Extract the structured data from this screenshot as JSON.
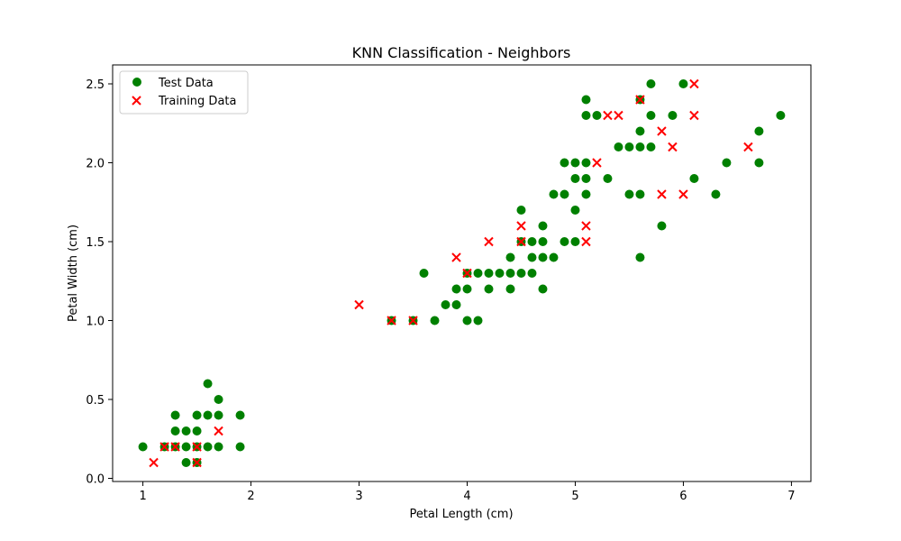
{
  "chart_data": {
    "type": "scatter",
    "title": "KNN Classification - Neighbors",
    "xlabel": "Petal Length (cm)",
    "ylabel": "Petal Width (cm)",
    "xlim": [
      0.72,
      7.18
    ],
    "ylim": [
      -0.02,
      2.62
    ],
    "xticks": [
      1,
      2,
      3,
      4,
      5,
      6,
      7
    ],
    "yticks": [
      0.0,
      0.5,
      1.0,
      1.5,
      2.0,
      2.5
    ],
    "xtick_labels": [
      "1",
      "2",
      "3",
      "4",
      "5",
      "6",
      "7"
    ],
    "ytick_labels": [
      "0.0",
      "0.5",
      "1.0",
      "1.5",
      "2.0",
      "2.5"
    ],
    "grid": false,
    "legend_position": "top-left",
    "series": [
      {
        "name": "Test Data",
        "marker": "circle",
        "color": "#008000",
        "points": [
          [
            1.0,
            0.2
          ],
          [
            1.2,
            0.2
          ],
          [
            1.3,
            0.2
          ],
          [
            1.3,
            0.3
          ],
          [
            1.3,
            0.4
          ],
          [
            1.4,
            0.1
          ],
          [
            1.4,
            0.2
          ],
          [
            1.4,
            0.3
          ],
          [
            1.5,
            0.1
          ],
          [
            1.5,
            0.2
          ],
          [
            1.5,
            0.3
          ],
          [
            1.5,
            0.4
          ],
          [
            1.6,
            0.2
          ],
          [
            1.6,
            0.4
          ],
          [
            1.6,
            0.6
          ],
          [
            1.7,
            0.2
          ],
          [
            1.7,
            0.4
          ],
          [
            1.7,
            0.5
          ],
          [
            1.9,
            0.2
          ],
          [
            1.9,
            0.4
          ],
          [
            3.3,
            1.0
          ],
          [
            3.5,
            1.0
          ],
          [
            3.6,
            1.3
          ],
          [
            3.7,
            1.0
          ],
          [
            3.8,
            1.1
          ],
          [
            3.9,
            1.1
          ],
          [
            3.9,
            1.2
          ],
          [
            4.0,
            1.0
          ],
          [
            4.0,
            1.2
          ],
          [
            4.0,
            1.3
          ],
          [
            4.1,
            1.0
          ],
          [
            4.1,
            1.3
          ],
          [
            4.2,
            1.2
          ],
          [
            4.2,
            1.3
          ],
          [
            4.3,
            1.3
          ],
          [
            4.4,
            1.2
          ],
          [
            4.4,
            1.3
          ],
          [
            4.4,
            1.4
          ],
          [
            4.5,
            1.3
          ],
          [
            4.5,
            1.5
          ],
          [
            4.5,
            1.7
          ],
          [
            4.6,
            1.3
          ],
          [
            4.6,
            1.4
          ],
          [
            4.6,
            1.5
          ],
          [
            4.7,
            1.2
          ],
          [
            4.7,
            1.4
          ],
          [
            4.7,
            1.5
          ],
          [
            4.7,
            1.6
          ],
          [
            4.8,
            1.4
          ],
          [
            4.8,
            1.8
          ],
          [
            4.9,
            1.5
          ],
          [
            4.9,
            1.8
          ],
          [
            4.9,
            2.0
          ],
          [
            5.0,
            1.5
          ],
          [
            5.0,
            1.7
          ],
          [
            5.0,
            1.9
          ],
          [
            5.0,
            2.0
          ],
          [
            5.1,
            1.8
          ],
          [
            5.1,
            1.9
          ],
          [
            5.1,
            2.0
          ],
          [
            5.1,
            2.3
          ],
          [
            5.1,
            2.4
          ],
          [
            5.2,
            2.3
          ],
          [
            5.3,
            1.9
          ],
          [
            5.4,
            2.1
          ],
          [
            5.5,
            1.8
          ],
          [
            5.5,
            2.1
          ],
          [
            5.6,
            1.4
          ],
          [
            5.6,
            1.8
          ],
          [
            5.6,
            2.1
          ],
          [
            5.6,
            2.2
          ],
          [
            5.6,
            2.4
          ],
          [
            5.7,
            2.1
          ],
          [
            5.7,
            2.3
          ],
          [
            5.7,
            2.5
          ],
          [
            5.8,
            1.6
          ],
          [
            5.9,
            2.3
          ],
          [
            6.0,
            2.5
          ],
          [
            6.1,
            1.9
          ],
          [
            6.3,
            1.8
          ],
          [
            6.4,
            2.0
          ],
          [
            6.7,
            2.0
          ],
          [
            6.7,
            2.2
          ],
          [
            6.9,
            2.3
          ]
        ]
      },
      {
        "name": "Training Data",
        "marker": "x",
        "color": "#ff0000",
        "points": [
          [
            1.1,
            0.1
          ],
          [
            1.2,
            0.2
          ],
          [
            1.3,
            0.2
          ],
          [
            1.5,
            0.1
          ],
          [
            1.5,
            0.2
          ],
          [
            1.7,
            0.3
          ],
          [
            3.0,
            1.1
          ],
          [
            3.3,
            1.0
          ],
          [
            3.5,
            1.0
          ],
          [
            3.9,
            1.4
          ],
          [
            4.0,
            1.3
          ],
          [
            4.2,
            1.5
          ],
          [
            4.5,
            1.5
          ],
          [
            4.5,
            1.6
          ],
          [
            5.1,
            1.5
          ],
          [
            5.1,
            1.6
          ],
          [
            5.2,
            2.0
          ],
          [
            5.3,
            2.3
          ],
          [
            5.4,
            2.3
          ],
          [
            5.6,
            2.4
          ],
          [
            5.8,
            1.8
          ],
          [
            5.8,
            2.2
          ],
          [
            5.9,
            2.1
          ],
          [
            6.0,
            1.8
          ],
          [
            6.1,
            2.3
          ],
          [
            6.1,
            2.5
          ],
          [
            6.6,
            2.1
          ]
        ]
      }
    ]
  }
}
